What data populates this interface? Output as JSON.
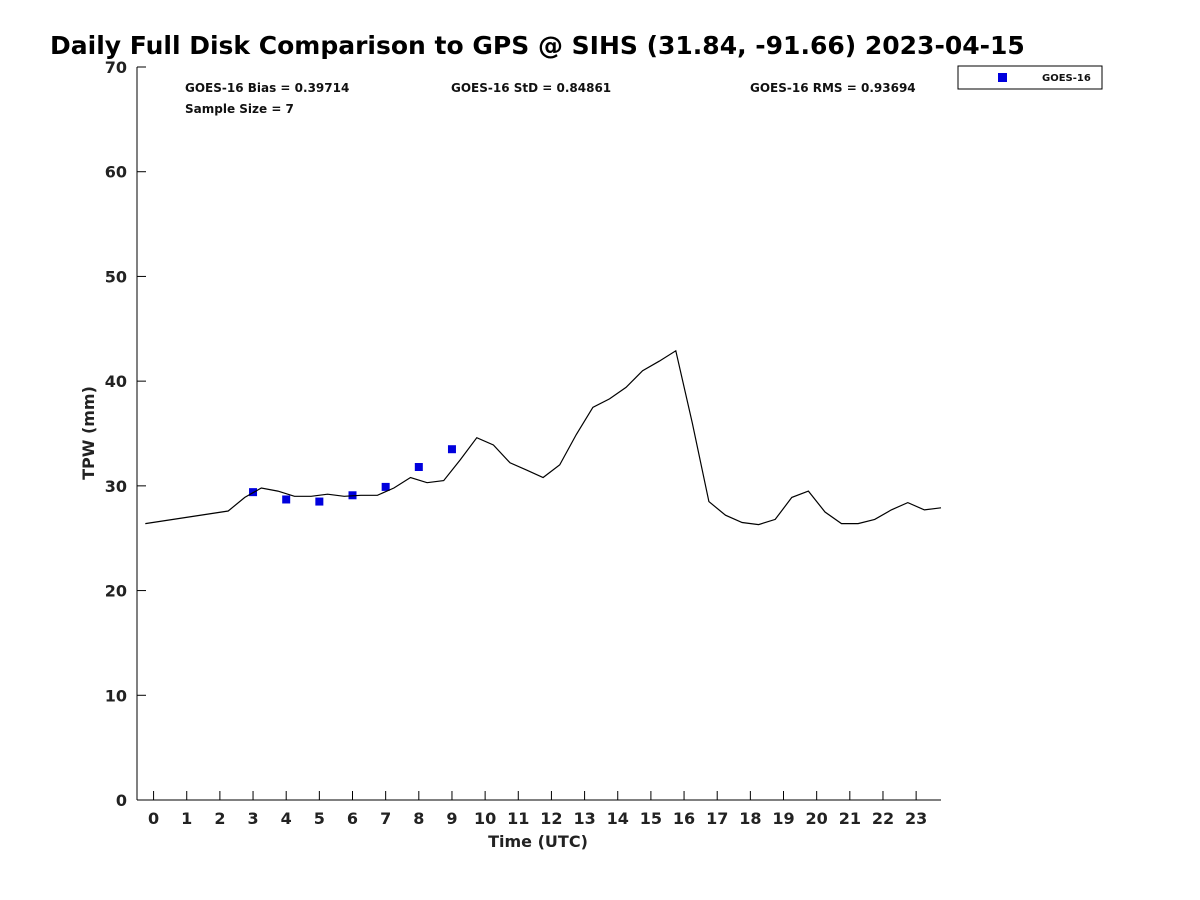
{
  "chart_data": {
    "type": "scatter",
    "title": "Daily Full Disk Comparison to GPS @ SIHS (31.84, -91.66) 2023-04-15",
    "xlabel": "Time (UTC)",
    "ylabel": "TPW (mm)",
    "xlim": [
      -0.5,
      23.75
    ],
    "ylim": [
      0,
      70
    ],
    "x_ticks": [
      0,
      1,
      2,
      3,
      4,
      5,
      6,
      7,
      8,
      9,
      10,
      11,
      12,
      13,
      14,
      15,
      16,
      17,
      18,
      19,
      20,
      21,
      22,
      23
    ],
    "y_ticks": [
      0,
      10,
      20,
      30,
      40,
      50,
      60,
      70
    ],
    "grid": false,
    "legend_position": "top-right",
    "stats": {
      "bias": "GOES-16 Bias = 0.39714",
      "std": "GOES-16 StD = 0.84861",
      "rms": "GOES-16 RMS = 0.93694",
      "sample_size": "Sample Size = 7"
    },
    "series": [
      {
        "kind": "scatter",
        "name": "GOES-16",
        "color": "#0000dd",
        "marker": "square",
        "x": [
          3,
          4,
          5,
          6,
          7,
          8,
          9
        ],
        "y": [
          29.4,
          28.7,
          28.5,
          29.1,
          29.9,
          31.8,
          33.5
        ]
      },
      {
        "kind": "line",
        "color": "#000000",
        "x": [
          -0.25,
          2.25,
          2.75,
          3.25,
          3.75,
          4.25,
          4.75,
          5.25,
          5.75,
          6.25,
          6.75,
          7.25,
          7.75,
          8.25,
          8.75,
          9.25,
          9.75,
          10.25,
          10.75,
          11.25,
          11.75,
          12.25,
          12.75,
          13.25,
          13.75,
          14.25,
          14.75,
          15.25,
          15.75,
          16.25,
          16.75,
          17.25,
          17.75,
          18.25,
          18.75,
          19.25,
          19.75,
          20.25,
          20.75,
          21.25,
          21.75,
          22.25,
          22.75,
          23.25,
          23.75
        ],
        "y": [
          26.4,
          27.6,
          28.9,
          29.8,
          29.5,
          29.0,
          29.0,
          29.2,
          29.0,
          29.1,
          29.1,
          29.8,
          30.8,
          30.3,
          30.5,
          32.5,
          34.6,
          33.9,
          32.2,
          31.5,
          30.8,
          32.0,
          34.9,
          37.5,
          38.3,
          39.4,
          41.0,
          41.9,
          42.9,
          36.0,
          28.5,
          27.2,
          26.5,
          26.3,
          26.8,
          28.9,
          29.5,
          27.5,
          26.4,
          26.4,
          26.8,
          27.7,
          28.4,
          27.7,
          27.9
        ]
      }
    ]
  }
}
